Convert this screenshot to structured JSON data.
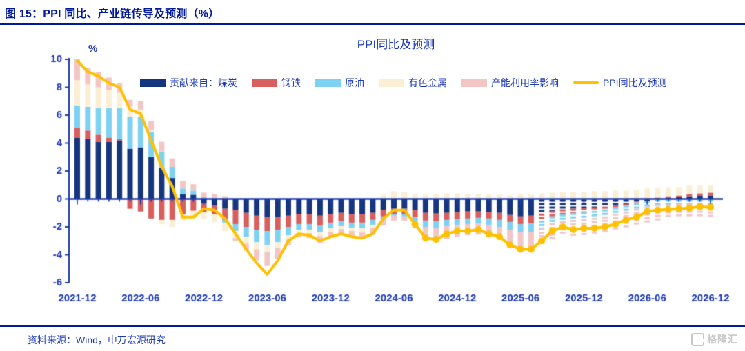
{
  "page": {
    "figure_title": "图 15：PPI 同比、产业链传导及预测（%）",
    "source_text": "资料来源：Wind，申万宏源研究",
    "logo_text": "格隆汇"
  },
  "colors": {
    "header_blue": "#001A9A",
    "chart_text_blue": "#1C39BB",
    "axis_blue": "#1E3CAD",
    "coal_navy": "#15357E",
    "steel_red": "#D95E5E",
    "oil_lightblue": "#7DD2F3",
    "nonferrous_cream": "#FAEFD4",
    "capacity_pink": "#F3C6C6",
    "ppi_gold": "#FFC000",
    "logo_gray": "#C8C8C8"
  },
  "chart_data": {
    "type": "bar",
    "subtype": "stacked-bars-with-line",
    "title": "PPI同比及预测",
    "unit_label": "%",
    "ylim": [
      -6,
      10
    ],
    "y_ticks": [
      10,
      8,
      6,
      4,
      2,
      0,
      -2,
      -4,
      -6
    ],
    "x_start": "2021-12",
    "x_end": "2026-12",
    "x_tick_labels": [
      "2021-12",
      "2022-06",
      "2022-12",
      "2023-06",
      "2023-12",
      "2024-06",
      "2024-12",
      "2025-06",
      "2025-12",
      "2026-06",
      "2026-12"
    ],
    "months_per_point": 1,
    "grid": false,
    "legend_position": "top-inside",
    "forecast_start_index": 44,
    "series": [
      {
        "name": "贡献来自：煤炭",
        "color": "#15357E",
        "values": [
          4.4,
          4.3,
          4.1,
          4.1,
          4.2,
          3.6,
          3.7,
          3.0,
          2.2,
          1.5,
          0.35,
          0.3,
          -0.35,
          -0.5,
          -0.7,
          -0.8,
          -1.0,
          -1.2,
          -1.3,
          -1.3,
          -1.2,
          -1.1,
          -1.1,
          -1.2,
          -1.1,
          -1.0,
          -1.1,
          -1.1,
          -1.0,
          -0.8,
          -0.7,
          -0.7,
          -0.8,
          -1.0,
          -1.05,
          -1.0,
          -0.95,
          -0.9,
          -0.9,
          -0.95,
          -1.0,
          -1.15,
          -1.25,
          -1.2,
          -1.0,
          -0.8,
          -0.7,
          -0.65,
          -0.6,
          -0.55,
          -0.5,
          -0.4,
          -0.3,
          -0.2,
          -0.1,
          0.0,
          0.1,
          0.15,
          0.2,
          0.25,
          0.25
        ]
      },
      {
        "name": "钢铁",
        "color": "#D95E5E",
        "values": [
          0.7,
          0.6,
          0.5,
          0.3,
          0.1,
          -0.7,
          -0.9,
          -1.4,
          -1.5,
          -1.5,
          -1.1,
          -0.85,
          -0.6,
          -0.6,
          -0.8,
          -1.0,
          -1.0,
          -1.0,
          -1.0,
          -0.9,
          -0.8,
          -0.7,
          -0.7,
          -0.7,
          -0.6,
          -0.6,
          -0.6,
          -0.6,
          -0.5,
          -0.45,
          -0.4,
          -0.4,
          -0.5,
          -0.55,
          -0.55,
          -0.5,
          -0.5,
          -0.5,
          -0.45,
          -0.45,
          -0.5,
          -0.5,
          -0.55,
          -0.55,
          -0.5,
          -0.4,
          -0.35,
          -0.3,
          -0.3,
          -0.25,
          -0.2,
          -0.15,
          -0.1,
          -0.05,
          0.05,
          0.1,
          0.1,
          0.1,
          0.15,
          0.15,
          0.2
        ]
      },
      {
        "name": "原油",
        "color": "#7DD2F3",
        "values": [
          1.6,
          1.7,
          1.9,
          2.1,
          2.2,
          2.3,
          2.2,
          1.8,
          1.2,
          0.8,
          0.4,
          0.3,
          0.15,
          0.1,
          -0.2,
          -0.5,
          -0.7,
          -0.9,
          -1.0,
          -0.9,
          -0.6,
          -0.4,
          -0.4,
          -0.45,
          -0.4,
          -0.35,
          -0.35,
          -0.4,
          -0.35,
          -0.2,
          -0.1,
          -0.15,
          -0.3,
          -0.45,
          -0.5,
          -0.45,
          -0.4,
          -0.4,
          -0.4,
          -0.45,
          -0.5,
          -0.55,
          -0.6,
          -0.6,
          -0.55,
          -0.5,
          -0.5,
          -0.5,
          -0.5,
          -0.5,
          -0.5,
          -0.45,
          -0.45,
          -0.4,
          -0.4,
          -0.35,
          -0.35,
          -0.3,
          -0.3,
          -0.3,
          -0.35
        ]
      },
      {
        "name": "有色金属",
        "color": "#FAEFD4",
        "values": [
          1.8,
          1.6,
          1.5,
          1.3,
          1.1,
          0.7,
          0.5,
          0.1,
          -0.3,
          -0.5,
          -0.45,
          -0.35,
          -0.5,
          -0.55,
          -0.6,
          -0.5,
          -0.5,
          -0.5,
          -0.5,
          -0.4,
          -0.3,
          -0.25,
          -0.25,
          -0.3,
          -0.25,
          -0.2,
          -0.25,
          -0.3,
          -0.2,
          0.3,
          0.55,
          0.5,
          0.35,
          0.3,
          0.35,
          0.4,
          0.4,
          0.35,
          0.35,
          0.3,
          0.3,
          0.25,
          0.3,
          0.3,
          0.4,
          0.45,
          0.5,
          0.5,
          0.5,
          0.55,
          0.55,
          0.6,
          0.6,
          0.65,
          0.7,
          0.7,
          0.65,
          0.6,
          0.6,
          0.55,
          0.5
        ]
      },
      {
        "name": "产能利用率影响",
        "color": "#F3C6C6",
        "values": [
          1.5,
          1.2,
          1.1,
          0.9,
          0.7,
          0.5,
          0.6,
          0.7,
          0.7,
          0.6,
          0.55,
          0.45,
          0.3,
          0.25,
          0.2,
          -0.2,
          -0.5,
          -0.8,
          -1.0,
          -0.8,
          -0.4,
          -0.3,
          -0.35,
          -0.5,
          -0.45,
          -0.4,
          -0.45,
          -0.45,
          -0.5,
          -0.45,
          -0.35,
          -0.3,
          -0.5,
          -0.8,
          -0.9,
          -0.9,
          -0.85,
          -0.8,
          -0.8,
          -0.85,
          -0.9,
          -1.05,
          -1.15,
          -1.2,
          -1.15,
          -1.05,
          -1.0,
          -1.05,
          -1.05,
          -1.1,
          -1.1,
          -1.1,
          -1.1,
          -1.1,
          -1.05,
          -1.05,
          -1.0,
          -1.0,
          -1.0,
          -1.0,
          -1.0
        ]
      }
    ],
    "line": {
      "name": "PPI同比及预测",
      "color": "#FFC000",
      "marker_start_index": 32,
      "values": [
        9.9,
        9.1,
        8.8,
        8.3,
        8.0,
        6.4,
        6.1,
        4.2,
        2.3,
        0.9,
        -1.3,
        -1.3,
        -0.7,
        -0.8,
        -1.4,
        -2.5,
        -3.6,
        -4.6,
        -5.4,
        -4.4,
        -3.0,
        -2.5,
        -2.6,
        -3.0,
        -2.7,
        -2.5,
        -2.7,
        -2.8,
        -2.5,
        -1.4,
        -0.8,
        -0.8,
        -1.8,
        -2.8,
        -2.9,
        -2.5,
        -2.3,
        -2.3,
        -2.2,
        -2.5,
        -2.7,
        -3.3,
        -3.6,
        -3.6,
        -3.0,
        -2.3,
        -2.0,
        -2.2,
        -2.1,
        -2.1,
        -2.0,
        -1.8,
        -1.5,
        -1.3,
        -0.9,
        -0.8,
        -0.75,
        -0.7,
        -0.65,
        -0.55,
        -0.6
      ]
    }
  }
}
